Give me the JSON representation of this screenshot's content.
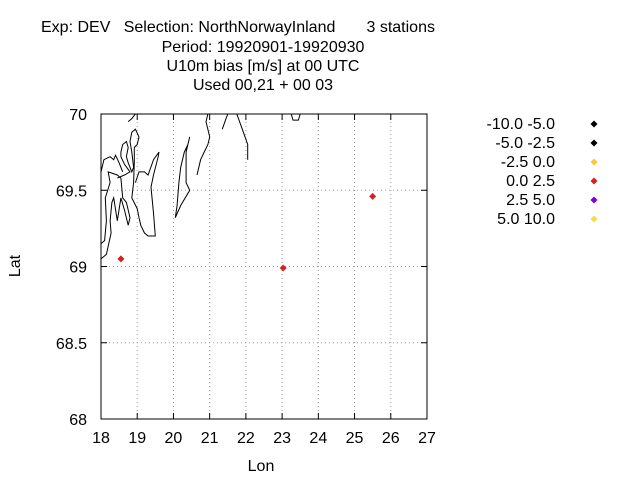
{
  "title_lines": [
    "Exp: DEV   Selection: NorthNorwayInland       3 stations",
    "Period: 19920901-19920930",
    "U10m bias [m/s] at  00 UTC",
    "Used  00,21  + 00 03"
  ],
  "chart_data": {
    "type": "scatter",
    "xlabel": "Lon",
    "ylabel": "Lat",
    "xlim": [
      18,
      27
    ],
    "ylim": [
      68,
      70
    ],
    "xticks": [
      18,
      19,
      20,
      21,
      22,
      23,
      24,
      25,
      26,
      27
    ],
    "yticks": [
      68,
      68.5,
      69,
      69.5,
      70
    ],
    "ytick_labels": [
      "68",
      "68.5",
      "69",
      "69.5",
      "70"
    ],
    "grid": true,
    "legend_position": "right",
    "legend": [
      {
        "label": "-10.0 -5.0",
        "color": "#000000"
      },
      {
        "label": "-5.0 -2.5",
        "color": "#000000"
      },
      {
        "label": "-2.5 0.0",
        "color": "#ffc832"
      },
      {
        "label": "0.0 2.5",
        "color": "#d82020"
      },
      {
        "label": "2.5 5.0",
        "color": "#8000e0"
      },
      {
        "label": "5.0 10.0",
        "color": "#f0e040"
      }
    ],
    "points": [
      {
        "lon": 18.55,
        "lat": 69.05,
        "class": "0.0 2.5"
      },
      {
        "lon": 23.03,
        "lat": 68.99,
        "class": "0.0 2.5"
      },
      {
        "lon": 25.5,
        "lat": 69.46,
        "class": "0.0 2.5"
      }
    ],
    "coastlines": [
      [
        [
          18.0,
          69.15
        ],
        [
          18.1,
          69.17
        ],
        [
          18.15,
          69.3
        ],
        [
          18.12,
          69.45
        ],
        [
          18.25,
          69.55
        ],
        [
          18.2,
          69.62
        ],
        [
          18.45,
          69.6
        ],
        [
          18.55,
          69.58
        ],
        [
          18.6,
          69.45
        ],
        [
          18.7,
          69.42
        ],
        [
          18.8,
          69.32
        ],
        [
          18.75,
          69.27
        ],
        [
          18.65,
          69.37
        ],
        [
          18.55,
          69.45
        ],
        [
          18.45,
          69.3
        ],
        [
          18.35,
          69.45
        ],
        [
          18.3,
          69.42
        ],
        [
          18.25,
          69.3
        ],
        [
          18.28,
          69.22
        ],
        [
          18.15,
          69.08
        ],
        [
          18.0,
          69.05
        ]
      ],
      [
        [
          18.45,
          69.58
        ],
        [
          18.65,
          69.6
        ],
        [
          18.8,
          69.62
        ],
        [
          18.65,
          69.67
        ],
        [
          18.55,
          69.72
        ],
        [
          18.55,
          69.75
        ],
        [
          18.6,
          69.8
        ],
        [
          18.7,
          69.82
        ],
        [
          18.75,
          69.78
        ],
        [
          18.7,
          69.72
        ],
        [
          18.75,
          69.68
        ],
        [
          18.85,
          69.62
        ],
        [
          18.9,
          69.65
        ],
        [
          18.85,
          69.75
        ],
        [
          18.8,
          69.82
        ],
        [
          18.85,
          69.88
        ],
        [
          18.95,
          69.9
        ],
        [
          19.05,
          69.85
        ],
        [
          19.0,
          69.8
        ],
        [
          18.92,
          69.78
        ],
        [
          18.92,
          69.68
        ],
        [
          18.9,
          69.55
        ],
        [
          18.85,
          69.45
        ],
        [
          19.0,
          69.38
        ],
        [
          19.05,
          69.32
        ],
        [
          19.1,
          69.27
        ],
        [
          19.2,
          69.22
        ],
        [
          19.3,
          69.2
        ],
        [
          19.5,
          69.2
        ],
        [
          19.45,
          69.35
        ],
        [
          19.38,
          69.52
        ],
        [
          19.45,
          69.6
        ],
        [
          19.58,
          69.72
        ],
        [
          19.6,
          69.75
        ],
        [
          19.45,
          69.7
        ],
        [
          19.3,
          69.6
        ],
        [
          19.2,
          69.62
        ],
        [
          19.05,
          69.62
        ],
        [
          18.95,
          69.55
        ]
      ],
      [
        [
          18.0,
          69.62
        ],
        [
          18.08,
          69.7
        ],
        [
          18.25,
          69.72
        ],
        [
          18.35,
          69.7
        ],
        [
          18.4,
          69.73
        ],
        [
          18.5,
          69.68
        ],
        [
          18.6,
          69.62
        ]
      ],
      [
        [
          18.75,
          69.95
        ],
        [
          18.85,
          69.97
        ],
        [
          18.95,
          70.0
        ]
      ],
      [
        [
          20.05,
          69.32
        ],
        [
          20.1,
          69.4
        ],
        [
          20.15,
          69.55
        ],
        [
          20.2,
          69.65
        ],
        [
          20.3,
          69.75
        ],
        [
          20.4,
          69.8
        ],
        [
          20.45,
          69.85
        ],
        [
          20.35,
          69.75
        ],
        [
          20.35,
          69.55
        ],
        [
          20.45,
          69.5
        ],
        [
          20.2,
          69.4
        ],
        [
          20.05,
          69.32
        ]
      ],
      [
        [
          20.65,
          69.6
        ],
        [
          20.75,
          69.7
        ],
        [
          20.85,
          69.75
        ],
        [
          20.95,
          69.8
        ],
        [
          21.0,
          69.85
        ],
        [
          20.9,
          69.95
        ],
        [
          20.95,
          70.0
        ]
      ],
      [
        [
          21.35,
          69.9
        ],
        [
          21.45,
          69.97
        ],
        [
          21.5,
          70.0
        ]
      ],
      [
        [
          21.75,
          70.0
        ],
        [
          21.9,
          69.9
        ],
        [
          22.05,
          69.8
        ],
        [
          22.05,
          69.7
        ]
      ],
      [
        [
          23.25,
          70.0
        ],
        [
          23.3,
          69.96
        ],
        [
          23.45,
          69.96
        ],
        [
          23.5,
          70.0
        ]
      ]
    ]
  }
}
